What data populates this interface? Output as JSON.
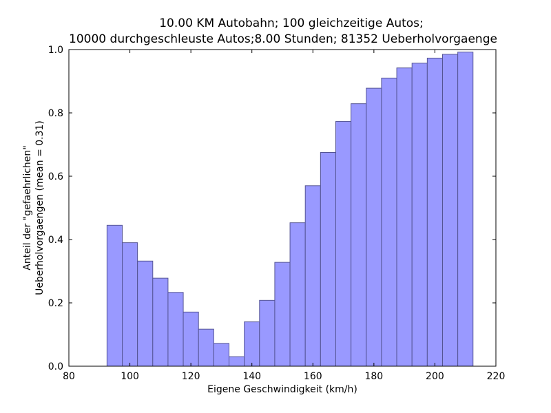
{
  "chart_data": {
    "type": "bar",
    "title_lines": [
      "10.00 KM Autobahn; 100 gleichzeitige Autos;",
      "10000 durchgeschleuste Autos;8.00 Stunden; 81352 Ueberholvorgaenge"
    ],
    "xlabel": "Eigene Geschwindigkeit (km/h)",
    "ylabel_lines": [
      "Anteil der \"gefaehrlichen\"",
      "Ueberholvorgaengen (mean = 0.31)"
    ],
    "xlim": [
      80,
      220
    ],
    "ylim": [
      0.0,
      1.0
    ],
    "x_ticks": [
      80,
      100,
      120,
      140,
      160,
      180,
      200,
      220
    ],
    "x_tick_labels": [
      "80",
      "100",
      "120",
      "140",
      "160",
      "180",
      "200",
      "220"
    ],
    "y_ticks": [
      0.0,
      0.2,
      0.4,
      0.6,
      0.8,
      1.0
    ],
    "y_tick_labels": [
      "0.0",
      "0.2",
      "0.4",
      "0.6",
      "0.8",
      "1.0"
    ],
    "bar_color": "#9999ff",
    "bar_edge_color": "#545494",
    "bin_width": 5,
    "bins": [
      {
        "x0": 92.5,
        "value": 0.445
      },
      {
        "x0": 97.5,
        "value": 0.39
      },
      {
        "x0": 102.5,
        "value": 0.332
      },
      {
        "x0": 107.5,
        "value": 0.278
      },
      {
        "x0": 112.5,
        "value": 0.233
      },
      {
        "x0": 117.5,
        "value": 0.171
      },
      {
        "x0": 122.5,
        "value": 0.117
      },
      {
        "x0": 127.5,
        "value": 0.072
      },
      {
        "x0": 132.5,
        "value": 0.03
      },
      {
        "x0": 137.5,
        "value": 0.14
      },
      {
        "x0": 142.5,
        "value": 0.208
      },
      {
        "x0": 147.5,
        "value": 0.328
      },
      {
        "x0": 152.5,
        "value": 0.453
      },
      {
        "x0": 157.5,
        "value": 0.57
      },
      {
        "x0": 162.5,
        "value": 0.675
      },
      {
        "x0": 167.5,
        "value": 0.773
      },
      {
        "x0": 172.5,
        "value": 0.829
      },
      {
        "x0": 177.5,
        "value": 0.878
      },
      {
        "x0": 182.5,
        "value": 0.91
      },
      {
        "x0": 187.5,
        "value": 0.942
      },
      {
        "x0": 192.5,
        "value": 0.957
      },
      {
        "x0": 197.5,
        "value": 0.973
      },
      {
        "x0": 202.5,
        "value": 0.985
      },
      {
        "x0": 207.5,
        "value": 0.992
      }
    ]
  }
}
